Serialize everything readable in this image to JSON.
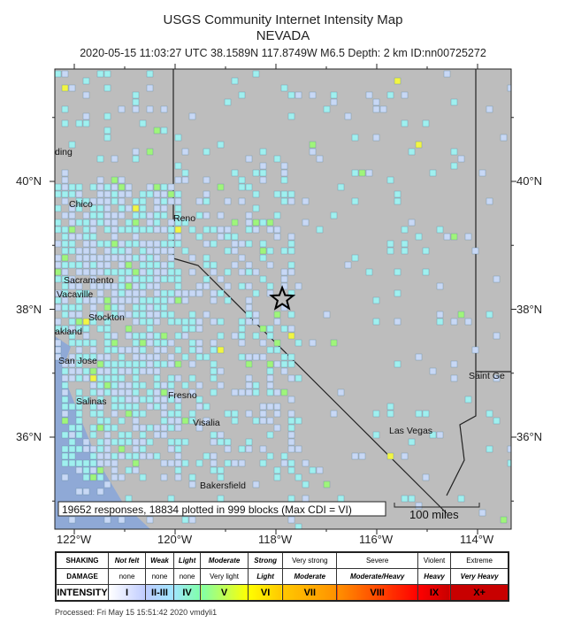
{
  "header": {
    "title": "USGS Community Internet Intensity Map",
    "region": "NEVADA",
    "event": "2020-05-15 11:03:27 UTC 38.1589N 117.8749W M6.5 Depth: 2 km ID:nn00725272"
  },
  "axes": {
    "lon_ticks": [
      "122°W",
      "120°W",
      "118°W",
      "116°W",
      "114°W"
    ],
    "lat_ticks": [
      "40°N",
      "38°N",
      "36°N"
    ]
  },
  "map": {
    "cities": [
      "ding",
      "Chico",
      "Reno",
      "Sacramento",
      "Vacaville",
      "Stockton",
      "akland",
      "San Jose",
      "Salinas",
      "Fresno",
      "Visalia",
      "Bakersfield",
      "Las Vegas",
      "Saint Ge"
    ],
    "epicenter": {
      "lat": 38.1589,
      "lon": -117.8749,
      "icon": "star-icon"
    },
    "summary": "19652 responses, 18834 plotted in 999 blocks (Max CDI = VI)",
    "scale_bar": "100 miles",
    "colors": {
      "land": "#bdbdbd",
      "water": "#8fa9d6",
      "cell_II_III": "#c8d8f5",
      "cell_IV": "#9ff0ef",
      "cell_V": "#9ff57a",
      "cell_VI": "#f2f542"
    }
  },
  "legend": {
    "rows": [
      {
        "label": "SHAKING",
        "cells": [
          "Not felt",
          "Weak",
          "Light",
          "Moderate",
          "Strong",
          "Very strong",
          "Severe",
          "Violent",
          "Extreme"
        ]
      },
      {
        "label": "DAMAGE",
        "cells": [
          "none",
          "none",
          "none",
          "Very light",
          "Light",
          "Moderate",
          "Moderate/Heavy",
          "Heavy",
          "Very Heavy"
        ]
      },
      {
        "label": "INTENSITY",
        "cells": [
          "I",
          "II-III",
          "IV",
          "V",
          "VI",
          "VII",
          "VIII",
          "IX",
          "X+"
        ]
      }
    ],
    "intensity_colors": [
      "#ffffff",
      "#bfccff",
      "#a0e6ff",
      "#80ffaa",
      "#ffff00",
      "#ffc800",
      "#ff9100",
      "#ff0000",
      "#c80000"
    ]
  },
  "footer": {
    "processed": "Processed: Fri May 15 15:51:42 2020 vmdyli1"
  }
}
